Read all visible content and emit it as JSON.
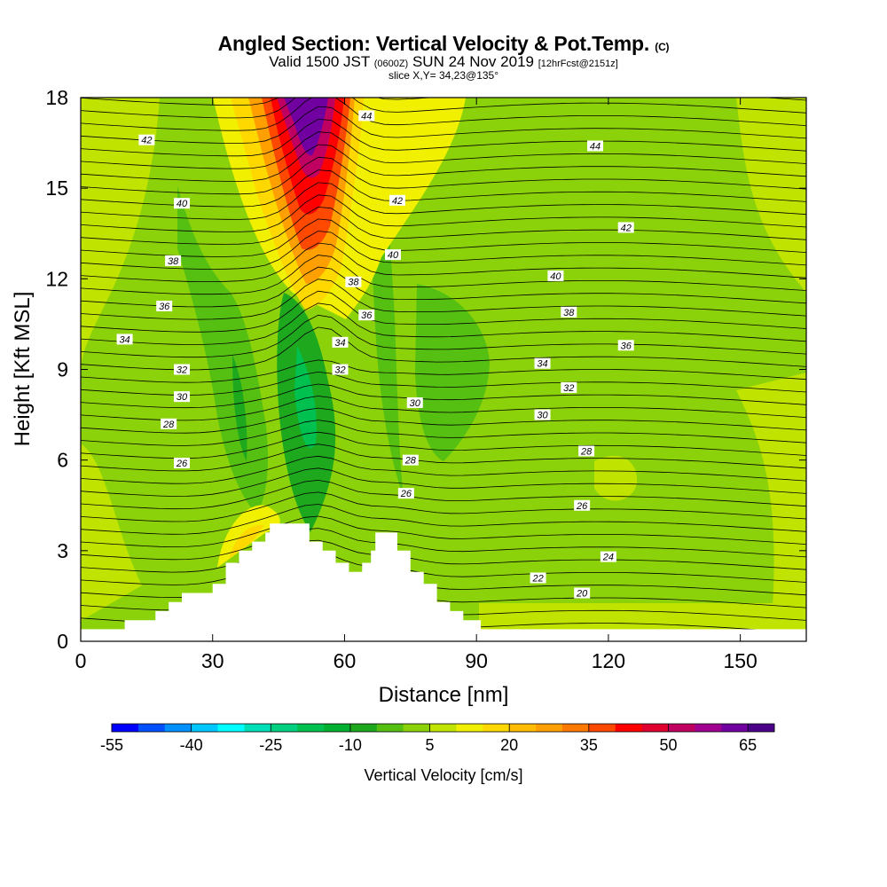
{
  "chart_data": {
    "type": "heatmap",
    "title": "Angled Section: Vertical Velocity & Pot.Temp.",
    "title_unit": "(C)",
    "subtitle_a": "Valid 1500 JST",
    "subtitle_b": "(0600Z)",
    "subtitle_c": "SUN 24 Nov 2019",
    "subtitle_d": "[12hrFcst@2151z]",
    "slice_label": "slice X,Y= 34,23@135°",
    "xlabel": "Distance [nm]",
    "ylabel": "Height [Kft MSL]",
    "xlim": [
      0,
      165
    ],
    "ylim": [
      0,
      18
    ],
    "x_ticks": [
      "0",
      "30",
      "60",
      "90",
      "120",
      "150"
    ],
    "y_ticks": [
      "0",
      "3",
      "6",
      "9",
      "12",
      "15",
      "18"
    ],
    "colorbar": {
      "label": "Vertical Velocity [cm/s]",
      "tick_labels": [
        "-55",
        "-40",
        "-25",
        "-10",
        "5",
        "20",
        "35",
        "50",
        "65"
      ],
      "colors": [
        "#0000ff",
        "#0050ff",
        "#0090ff",
        "#00c8ff",
        "#00ffff",
        "#00e0b8",
        "#00d080",
        "#00c050",
        "#00b030",
        "#1ea81e",
        "#55c012",
        "#8cd20a",
        "#c0e400",
        "#f0f000",
        "#ffd800",
        "#ffbc00",
        "#ffa000",
        "#ff7800",
        "#ff4800",
        "#ff0000",
        "#e00030",
        "#c00060",
        "#a00090",
        "#7000a0",
        "#4a0088"
      ]
    },
    "series_theta_contours": [
      {
        "level": "20",
        "x": 114,
        "y": 1.6
      },
      {
        "level": "22",
        "x": 104,
        "y": 2.1
      },
      {
        "level": "24",
        "x": 120,
        "y": 2.8
      },
      {
        "level": "26",
        "x": 114,
        "y": 4.5
      },
      {
        "level": "26",
        "x": 74,
        "y": 4.9
      },
      {
        "level": "26",
        "x": 23,
        "y": 5.9
      },
      {
        "level": "28",
        "x": 75,
        "y": 6.0
      },
      {
        "level": "28",
        "x": 115,
        "y": 6.3
      },
      {
        "level": "28",
        "x": 20,
        "y": 7.2
      },
      {
        "level": "30",
        "x": 76,
        "y": 7.9
      },
      {
        "level": "30",
        "x": 105,
        "y": 7.5
      },
      {
        "level": "30",
        "x": 23,
        "y": 8.1
      },
      {
        "level": "32",
        "x": 59,
        "y": 9.0
      },
      {
        "level": "32",
        "x": 111,
        "y": 8.4
      },
      {
        "level": "32",
        "x": 23,
        "y": 9.0
      },
      {
        "level": "34",
        "x": 59,
        "y": 9.9
      },
      {
        "level": "34",
        "x": 105,
        "y": 9.2
      },
      {
        "level": "34",
        "x": 10,
        "y": 10.0
      },
      {
        "level": "36",
        "x": 65,
        "y": 10.8
      },
      {
        "level": "36",
        "x": 124,
        "y": 9.8
      },
      {
        "level": "36",
        "x": 19,
        "y": 11.1
      },
      {
        "level": "38",
        "x": 62,
        "y": 11.9
      },
      {
        "level": "38",
        "x": 111,
        "y": 10.9
      },
      {
        "level": "38",
        "x": 21,
        "y": 12.6
      },
      {
        "level": "40",
        "x": 71,
        "y": 12.8
      },
      {
        "level": "40",
        "x": 108,
        "y": 12.1
      },
      {
        "level": "40",
        "x": 23,
        "y": 14.5
      },
      {
        "level": "42",
        "x": 72,
        "y": 14.6
      },
      {
        "level": "42",
        "x": 124,
        "y": 13.7
      },
      {
        "level": "42",
        "x": 15,
        "y": 16.6
      },
      {
        "level": "44",
        "x": 65,
        "y": 17.4
      },
      {
        "level": "44",
        "x": 117,
        "y": 16.4
      }
    ],
    "terrain": [
      [
        0,
        0.4
      ],
      [
        10,
        0.4
      ],
      [
        10,
        0.7
      ],
      [
        17,
        0.7
      ],
      [
        17,
        1.0
      ],
      [
        20,
        1.0
      ],
      [
        20,
        1.3
      ],
      [
        23,
        1.3
      ],
      [
        23,
        1.6
      ],
      [
        30,
        1.6
      ],
      [
        30,
        1.9
      ],
      [
        33,
        1.9
      ],
      [
        33,
        2.6
      ],
      [
        36,
        2.6
      ],
      [
        36,
        3.0
      ],
      [
        39,
        3.0
      ],
      [
        39,
        3.3
      ],
      [
        42,
        3.3
      ],
      [
        42,
        3.6
      ],
      [
        43,
        3.6
      ],
      [
        43,
        3.9
      ],
      [
        52,
        3.9
      ],
      [
        52,
        3.6
      ],
      [
        52,
        3.3
      ],
      [
        55,
        3.3
      ],
      [
        55,
        3.0
      ],
      [
        58,
        3.0
      ],
      [
        58,
        2.6
      ],
      [
        61,
        2.6
      ],
      [
        61,
        2.3
      ],
      [
        64,
        2.3
      ],
      [
        64,
        2.6
      ],
      [
        66,
        2.6
      ],
      [
        66,
        3.0
      ],
      [
        67,
        3.0
      ],
      [
        67,
        3.6
      ],
      [
        72,
        3.6
      ],
      [
        72,
        3.0
      ],
      [
        75,
        3.0
      ],
      [
        75,
        2.3
      ],
      [
        78,
        2.3
      ],
      [
        78,
        1.9
      ],
      [
        81,
        1.9
      ],
      [
        81,
        1.3
      ],
      [
        84,
        1.3
      ],
      [
        84,
        1.0
      ],
      [
        87,
        1.0
      ],
      [
        87,
        0.7
      ],
      [
        91,
        0.7
      ],
      [
        91,
        0.4
      ],
      [
        165,
        0.4
      ]
    ]
  }
}
